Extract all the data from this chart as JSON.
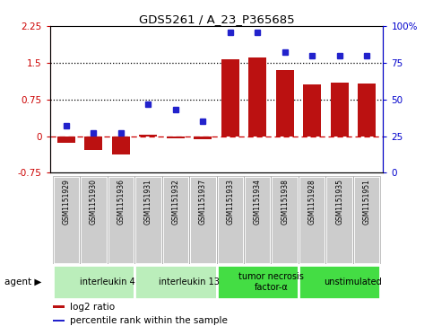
{
  "title": "GDS5261 / A_23_P365685",
  "samples": [
    "GSM1151929",
    "GSM1151930",
    "GSM1151936",
    "GSM1151931",
    "GSM1151932",
    "GSM1151937",
    "GSM1151933",
    "GSM1151934",
    "GSM1151938",
    "GSM1151928",
    "GSM1151935",
    "GSM1151951"
  ],
  "log2_ratio": [
    -0.13,
    -0.28,
    -0.38,
    0.02,
    -0.04,
    -0.07,
    1.57,
    1.6,
    1.35,
    1.05,
    1.1,
    1.08
  ],
  "percentile": [
    32,
    27,
    27,
    47,
    43,
    35,
    96,
    96,
    82,
    80,
    80,
    80
  ],
  "agents": [
    {
      "label": "interleukin 4",
      "start": 0,
      "end": 3,
      "color": "#bbeebb"
    },
    {
      "label": "interleukin 13",
      "start": 3,
      "end": 6,
      "color": "#bbeebb"
    },
    {
      "label": "tumor necrosis\nfactor-α",
      "start": 6,
      "end": 9,
      "color": "#44dd44"
    },
    {
      "label": "unstimulated",
      "start": 9,
      "end": 12,
      "color": "#44dd44"
    }
  ],
  "bar_color": "#bb1111",
  "dot_color": "#2222cc",
  "ylim_left": [
    -0.75,
    2.25
  ],
  "yticks_left": [
    -0.75,
    0,
    0.75,
    1.5,
    2.25
  ],
  "ytick_labels_left": [
    "-0.75",
    "0",
    "0.75",
    "1.5",
    "2.25"
  ],
  "ylim_right": [
    0,
    100
  ],
  "yticks_right": [
    0,
    25,
    50,
    75,
    100
  ],
  "ytick_labels_right": [
    "0",
    "25",
    "50",
    "75",
    "100%"
  ],
  "hlines": [
    0.75,
    1.5
  ],
  "zero_line_y": 0,
  "legend_items": [
    {
      "label": "log2 ratio",
      "color": "#bb1111"
    },
    {
      "label": "percentile rank within the sample",
      "color": "#2222cc"
    }
  ],
  "agent_label": "agent",
  "sample_box_color": "#cccccc",
  "grid_color": "black"
}
